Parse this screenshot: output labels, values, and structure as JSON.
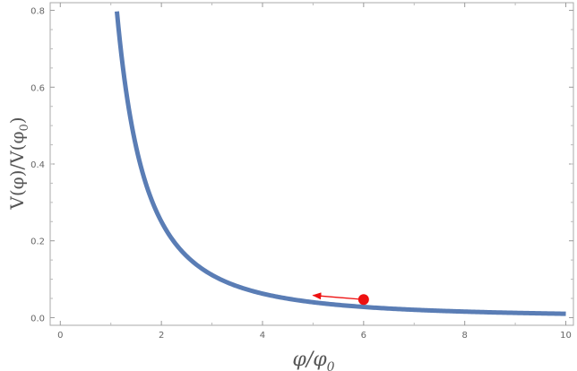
{
  "chart_data": {
    "type": "line",
    "function": "1/x^2",
    "x_range": [
      1.12,
      10
    ],
    "xlim": [
      -0.2,
      10.15
    ],
    "ylim": [
      -0.02,
      0.82
    ],
    "xticks": [
      0,
      2,
      4,
      6,
      8,
      10
    ],
    "xticks_minor": [
      1,
      3,
      5,
      7,
      9
    ],
    "yticks": [
      0.0,
      0.2,
      0.4,
      0.6,
      0.8
    ],
    "xtick_labels": [
      "0",
      "2",
      "4",
      "6",
      "8",
      "10"
    ],
    "ytick_labels": [
      "0.0",
      "0.2",
      "0.4",
      "0.6",
      "0.8"
    ],
    "xlabel": {
      "main": "φ/φ",
      "sub": "0"
    },
    "ylabel": {
      "main": "V(φ)/V(φ",
      "sub": "0",
      "close": ")"
    },
    "grid": false,
    "series": [
      {
        "color": "#5a7db5"
      }
    ],
    "marker": {
      "x": 6,
      "y": 0.047,
      "color": "#ee1111"
    },
    "arrow": {
      "from": [
        6,
        0.047
      ],
      "to": [
        5,
        0.058
      ],
      "color": "#ee1111"
    }
  }
}
